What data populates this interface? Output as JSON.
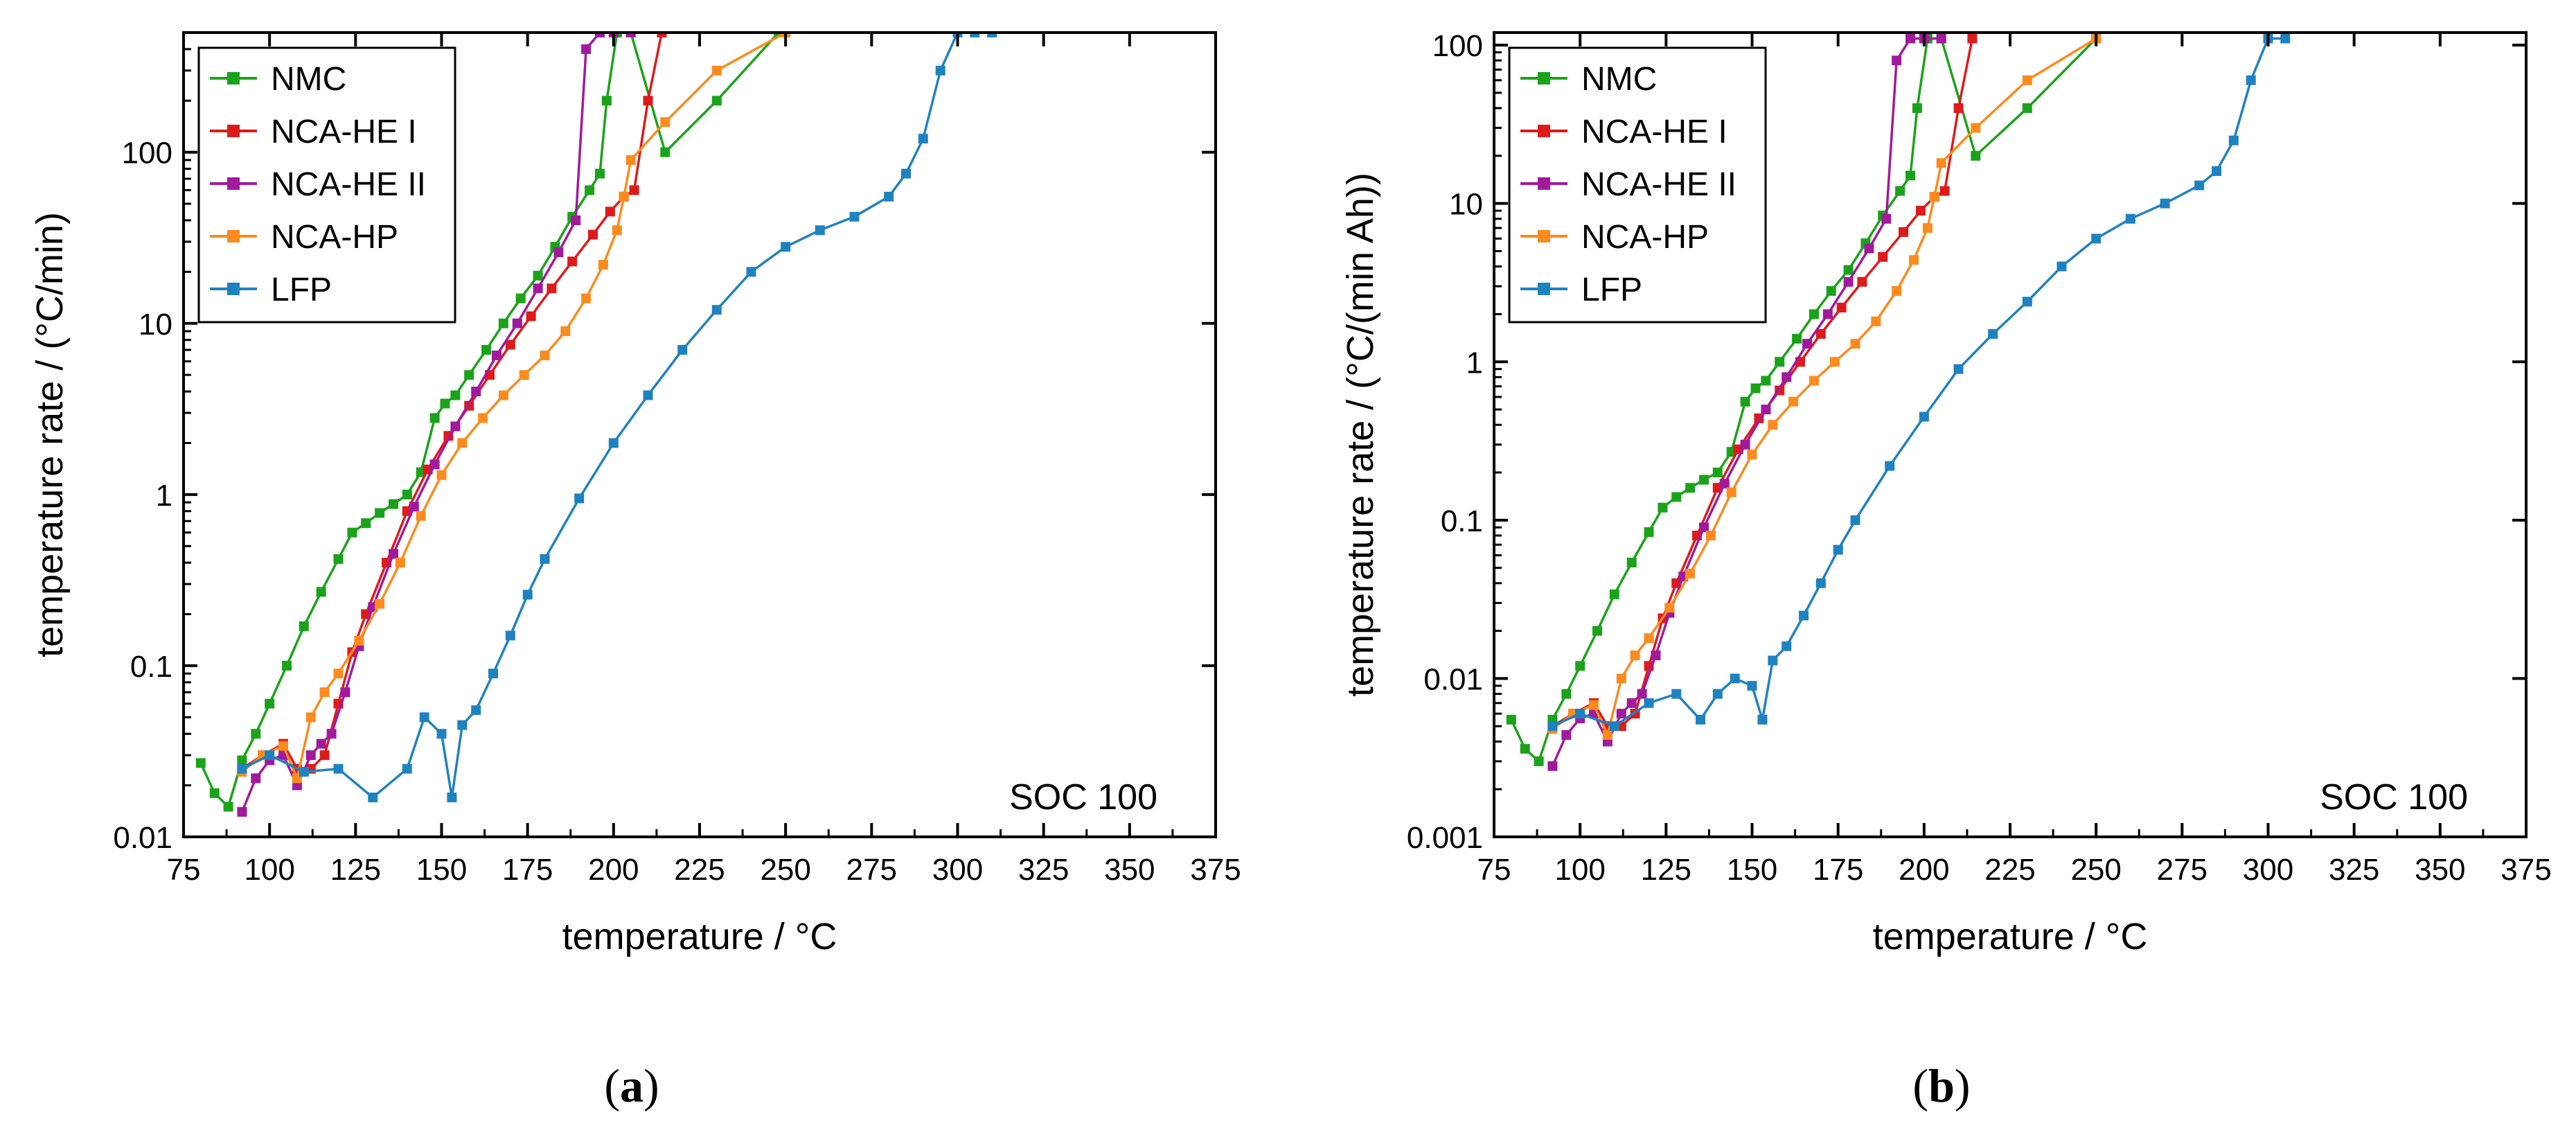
{
  "chart_data": [
    {
      "type": "line",
      "caption": "a",
      "xlabel": "temperature / °C",
      "ylabel": "temperature rate / (°C/min)",
      "xlim": [
        75,
        375
      ],
      "ylim": [
        0.01,
        500
      ],
      "yscale": "log",
      "xticks": [
        75,
        100,
        125,
        150,
        175,
        200,
        225,
        250,
        275,
        300,
        325,
        350,
        375
      ],
      "yticks": [
        0.01,
        0.1,
        1,
        10,
        100
      ],
      "ytick_labels": [
        "0.01",
        "0.1",
        "1",
        "10",
        "100"
      ],
      "annotation": "SOC 100",
      "legend_position": "top-left",
      "series": [
        {
          "name": "NMC",
          "color": "#1aa31a",
          "x": [
            80,
            84,
            88,
            92,
            96,
            100,
            105,
            110,
            115,
            120,
            124,
            128,
            132,
            136,
            140,
            144,
            148,
            151,
            154,
            158,
            163,
            168,
            173,
            178,
            183,
            188,
            193,
            196,
            198,
            201,
            205,
            215,
            230,
            248
          ],
          "y": [
            0.027,
            0.018,
            0.015,
            0.028,
            0.04,
            0.06,
            0.1,
            0.17,
            0.27,
            0.42,
            0.6,
            0.68,
            0.78,
            0.88,
            1.0,
            1.35,
            2.8,
            3.4,
            3.8,
            5.0,
            7.0,
            10.0,
            14.0,
            19.0,
            28.0,
            42.0,
            60.0,
            75.0,
            200.0,
            500.0,
            500.0,
            100.0,
            200.0,
            500.0
          ]
        },
        {
          "name": "NCA-HE I",
          "color": "#dd1b1b",
          "x": [
            92,
            98,
            104,
            108,
            112,
            116,
            120,
            124,
            128,
            134,
            140,
            146,
            152,
            158,
            164,
            170,
            176,
            182,
            188,
            194,
            199,
            203,
            206,
            210,
            214
          ],
          "y": [
            0.025,
            0.03,
            0.035,
            0.025,
            0.025,
            0.03,
            0.06,
            0.12,
            0.2,
            0.4,
            0.8,
            1.4,
            2.2,
            3.3,
            5.0,
            7.5,
            11.0,
            16.0,
            23.0,
            33.0,
            45.0,
            55.0,
            60.0,
            200.0,
            500.0
          ]
        },
        {
          "name": "NCA-HE II",
          "color": "#a11a9c",
          "x": [
            92,
            96,
            100,
            104,
            108,
            112,
            115,
            118,
            122,
            126,
            130,
            136,
            142,
            148,
            154,
            160,
            166,
            172,
            178,
            184,
            189,
            192,
            196,
            200,
            205
          ],
          "y": [
            0.014,
            0.022,
            0.028,
            0.03,
            0.02,
            0.03,
            0.035,
            0.04,
            0.07,
            0.13,
            0.22,
            0.45,
            0.85,
            1.5,
            2.5,
            4.0,
            6.5,
            10.0,
            16.0,
            26.0,
            40.0,
            400.0,
            500.0,
            500.0,
            500.0
          ]
        },
        {
          "name": "NCA-HP",
          "color": "#fb8b1e",
          "x": [
            92,
            98,
            104,
            108,
            112,
            116,
            120,
            126,
            132,
            138,
            144,
            150,
            156,
            162,
            168,
            174,
            180,
            186,
            192,
            197,
            201,
            203,
            205,
            215,
            230,
            250
          ],
          "y": [
            0.024,
            0.03,
            0.034,
            0.022,
            0.05,
            0.07,
            0.09,
            0.14,
            0.23,
            0.4,
            0.75,
            1.3,
            2.0,
            2.8,
            3.8,
            5.0,
            6.5,
            9.0,
            14.0,
            22.0,
            35.0,
            55.0,
            90.0,
            150.0,
            300.0,
            500.0
          ]
        },
        {
          "name": "LFP",
          "color": "#1f82c0",
          "x": [
            92,
            100,
            110,
            120,
            130,
            140,
            145,
            150,
            153,
            156,
            160,
            165,
            170,
            175,
            180,
            190,
            200,
            210,
            220,
            230,
            240,
            250,
            260,
            270,
            280,
            285,
            290,
            295,
            300,
            305,
            310
          ],
          "y": [
            0.025,
            0.03,
            0.024,
            0.025,
            0.017,
            0.025,
            0.05,
            0.04,
            0.017,
            0.045,
            0.055,
            0.09,
            0.15,
            0.26,
            0.42,
            0.95,
            2.0,
            3.8,
            7.0,
            12.0,
            20.0,
            28.0,
            35.0,
            42.0,
            55.0,
            75.0,
            120.0,
            300.0,
            500.0,
            500.0,
            500.0
          ]
        }
      ]
    },
    {
      "type": "line",
      "caption": "b",
      "xlabel": "temperature / °C",
      "ylabel": "temperature rate / (°C/(min Ah))",
      "xlim": [
        75,
        375
      ],
      "ylim": [
        0.001,
        120
      ],
      "yscale": "log",
      "xticks": [
        75,
        100,
        125,
        150,
        175,
        200,
        225,
        250,
        275,
        300,
        325,
        350,
        375
      ],
      "yticks": [
        0.001,
        0.01,
        0.1,
        1,
        10,
        100
      ],
      "ytick_labels": [
        "0.001",
        "0.01",
        "0.1",
        "1",
        "10",
        "100"
      ],
      "annotation": "SOC 100",
      "legend_position": "top-left",
      "series": [
        {
          "name": "NMC",
          "color": "#1aa31a",
          "x": [
            80,
            84,
            88,
            92,
            96,
            100,
            105,
            110,
            115,
            120,
            124,
            128,
            132,
            136,
            140,
            144,
            148,
            151,
            154,
            158,
            163,
            168,
            173,
            178,
            183,
            188,
            193,
            196,
            198,
            201,
            205,
            215,
            230,
            250
          ],
          "y": [
            0.0055,
            0.0036,
            0.003,
            0.0055,
            0.008,
            0.012,
            0.02,
            0.034,
            0.054,
            0.084,
            0.12,
            0.14,
            0.16,
            0.18,
            0.2,
            0.27,
            0.56,
            0.68,
            0.76,
            1.0,
            1.4,
            2.0,
            2.8,
            3.8,
            5.6,
            8.4,
            12.0,
            15.0,
            40.0,
            110.0,
            110.0,
            20.0,
            40.0,
            110.0
          ]
        },
        {
          "name": "NCA-HE I",
          "color": "#dd1b1b",
          "x": [
            92,
            98,
            104,
            108,
            112,
            116,
            120,
            124,
            128,
            134,
            140,
            146,
            152,
            158,
            164,
            170,
            176,
            182,
            188,
            194,
            199,
            203,
            206,
            210,
            214
          ],
          "y": [
            0.005,
            0.006,
            0.007,
            0.005,
            0.005,
            0.006,
            0.012,
            0.024,
            0.04,
            0.08,
            0.16,
            0.28,
            0.44,
            0.66,
            1.0,
            1.5,
            2.2,
            3.2,
            4.6,
            6.6,
            9.0,
            11.0,
            12.0,
            40.0,
            110.0
          ]
        },
        {
          "name": "NCA-HE II",
          "color": "#a11a9c",
          "x": [
            92,
            96,
            100,
            104,
            108,
            112,
            115,
            118,
            122,
            126,
            130,
            136,
            142,
            148,
            154,
            160,
            166,
            172,
            178,
            184,
            189,
            192,
            196,
            200,
            205
          ],
          "y": [
            0.0028,
            0.0044,
            0.0056,
            0.006,
            0.004,
            0.006,
            0.007,
            0.008,
            0.014,
            0.026,
            0.044,
            0.09,
            0.17,
            0.3,
            0.5,
            0.8,
            1.3,
            2.0,
            3.2,
            5.2,
            8.0,
            80.0,
            110.0,
            110.0,
            110.0
          ]
        },
        {
          "name": "NCA-HP",
          "color": "#fb8b1e",
          "x": [
            92,
            98,
            104,
            108,
            112,
            116,
            120,
            126,
            132,
            138,
            144,
            150,
            156,
            162,
            168,
            174,
            180,
            186,
            192,
            197,
            201,
            203,
            205,
            215,
            230,
            250
          ],
          "y": [
            0.0048,
            0.006,
            0.0068,
            0.0044,
            0.01,
            0.014,
            0.018,
            0.028,
            0.046,
            0.08,
            0.15,
            0.26,
            0.4,
            0.56,
            0.76,
            1.0,
            1.3,
            1.8,
            2.8,
            4.4,
            7.0,
            11.0,
            18.0,
            30.0,
            60.0,
            110.0
          ]
        },
        {
          "name": "LFP",
          "color": "#1f82c0",
          "x": [
            92,
            100,
            110,
            120,
            128,
            135,
            140,
            145,
            150,
            153,
            156,
            160,
            165,
            170,
            175,
            180,
            190,
            200,
            210,
            220,
            230,
            240,
            250,
            260,
            270,
            280,
            285,
            290,
            295,
            300,
            305
          ],
          "y": [
            0.005,
            0.006,
            0.005,
            0.007,
            0.008,
            0.0055,
            0.008,
            0.01,
            0.009,
            0.0055,
            0.013,
            0.016,
            0.025,
            0.04,
            0.065,
            0.1,
            0.22,
            0.45,
            0.9,
            1.5,
            2.4,
            4.0,
            6.0,
            8.0,
            10.0,
            13.0,
            16.0,
            25.0,
            60.0,
            110.0,
            110.0
          ]
        }
      ]
    }
  ]
}
